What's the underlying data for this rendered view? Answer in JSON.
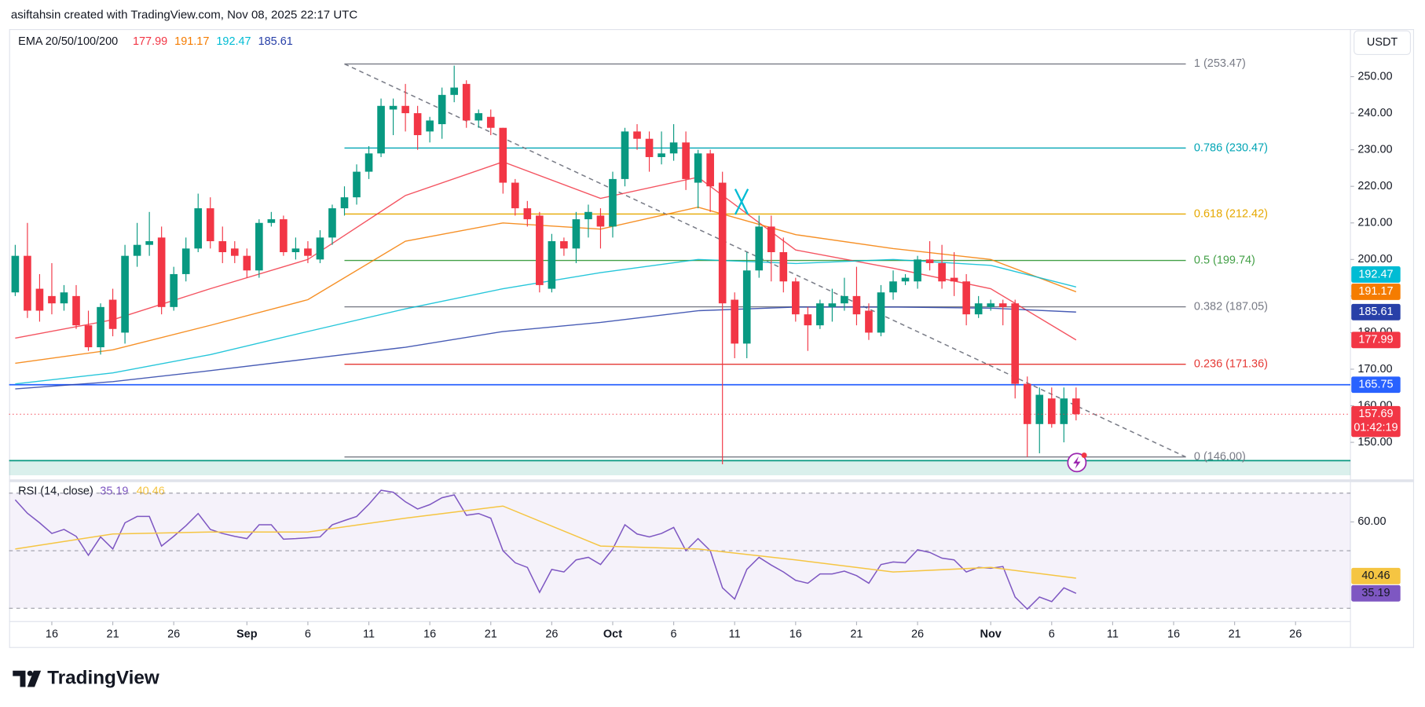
{
  "header": "asiftahsin created with TradingView.com, Nov 08, 2025 22:17 UTC",
  "brand": "TradingView",
  "chart_data": {
    "type": "candlestick",
    "currency": "USDT",
    "indicator_title": "EMA 20/50/100/200",
    "categories": [
      "Aug 13",
      "Aug 14",
      "Aug 15",
      "Aug 16",
      "Aug 17",
      "Aug 18",
      "Aug 19",
      "Aug 20",
      "Aug 21",
      "Aug 22",
      "Aug 23",
      "Aug 24",
      "Aug 25",
      "Aug 26",
      "Aug 27",
      "Aug 28",
      "Aug 29",
      "Aug 30",
      "Aug 31",
      "Sep 1",
      "Sep 2",
      "Sep 3",
      "Sep 4",
      "Sep 5",
      "Sep 6",
      "Sep 7",
      "Sep 8",
      "Sep 9",
      "Sep 10",
      "Sep 11",
      "Sep 12",
      "Sep 13",
      "Sep 14",
      "Sep 15",
      "Sep 16",
      "Sep 17",
      "Sep 18",
      "Sep 19",
      "Sep 20",
      "Sep 21",
      "Sep 22",
      "Sep 23",
      "Sep 24",
      "Sep 25",
      "Sep 26",
      "Sep 27",
      "Sep 28",
      "Sep 29",
      "Sep 30",
      "Oct 1",
      "Oct 2",
      "Oct 3",
      "Oct 4",
      "Oct 5",
      "Oct 6",
      "Oct 7",
      "Oct 8",
      "Oct 9",
      "Oct 10",
      "Oct 11",
      "Oct 12",
      "Oct 13",
      "Oct 14",
      "Oct 15",
      "Oct 16",
      "Oct 17",
      "Oct 18",
      "Oct 19",
      "Oct 20",
      "Oct 21",
      "Oct 22",
      "Oct 23",
      "Oct 24",
      "Oct 25",
      "Oct 26",
      "Oct 27",
      "Oct 28",
      "Oct 29",
      "Oct 30",
      "Oct 31",
      "Nov 1",
      "Nov 2",
      "Nov 3",
      "Nov 4",
      "Nov 5",
      "Nov 6",
      "Nov 7",
      "Nov 8",
      "Nov 9",
      "Nov 10",
      "Nov 11",
      "Nov 12",
      "Nov 13",
      "Nov 14",
      "Nov 15",
      "Nov 16",
      "Nov 17",
      "Nov 18",
      "Nov 19",
      "Nov 20",
      "Nov 21",
      "Nov 22",
      "Nov 23",
      "Nov 24",
      "Nov 25",
      "Nov 26",
      "Nov 27",
      "Nov 28",
      "Nov 29",
      "Nov 30"
    ],
    "open": [
      191,
      201,
      192,
      190,
      188,
      190,
      182,
      176,
      189,
      180,
      201,
      204,
      206,
      187,
      196,
      203,
      214,
      205,
      203,
      201,
      197,
      210,
      211,
      202,
      203,
      200,
      206,
      214,
      217,
      224,
      229,
      241,
      242,
      240,
      235,
      237,
      245,
      248,
      238,
      239,
      236,
      221,
      214,
      212,
      192,
      205,
      203,
      211,
      212,
      209,
      222,
      235,
      233,
      228,
      229,
      232,
      221,
      229,
      221,
      189,
      177,
      197,
      209,
      202,
      194,
      185,
      182,
      187,
      188,
      190,
      186,
      180,
      191,
      194,
      194,
      200,
      199,
      195,
      194,
      185,
      187,
      188,
      188,
      166,
      155,
      162,
      155,
      162,
      null,
      null,
      null,
      null,
      null,
      null,
      null,
      null,
      null,
      null,
      null,
      null,
      null,
      null,
      null,
      null,
      null,
      null,
      null,
      null,
      null,
      null
    ],
    "high": [
      204,
      210,
      196,
      199,
      193,
      193,
      186,
      188,
      192,
      204,
      210,
      213,
      209,
      198,
      206,
      218,
      217,
      209,
      205,
      203,
      211,
      213,
      212,
      206,
      205,
      208,
      215,
      220,
      226,
      231,
      244,
      244,
      248,
      242,
      239,
      247,
      253,
      249,
      241,
      241,
      236,
      222,
      216,
      213,
      207,
      206,
      213,
      215,
      214,
      224,
      236,
      237,
      235,
      235,
      237,
      235,
      230,
      230,
      224,
      191,
      202,
      212,
      212,
      206,
      195,
      187,
      189,
      192,
      195,
      198,
      188,
      193,
      197,
      196,
      201,
      205,
      204,
      202,
      196,
      190,
      189,
      189,
      189,
      168,
      165,
      165,
      165,
      165,
      null,
      null,
      null,
      null,
      null,
      null,
      null,
      null,
      null,
      null,
      null,
      null,
      null,
      null,
      null,
      null,
      null,
      null,
      null,
      null,
      null,
      null
    ],
    "low": [
      190,
      184,
      183,
      185,
      186,
      181,
      175,
      174,
      179,
      177,
      198,
      201,
      185,
      186,
      194,
      202,
      203,
      199,
      199,
      195,
      195,
      209,
      201,
      200,
      199,
      199,
      204,
      212,
      215,
      222,
      228,
      234,
      235,
      230,
      232,
      233,
      243,
      236,
      236,
      234,
      218,
      212,
      209,
      191,
      191,
      201,
      199,
      206,
      203,
      206,
      220,
      230,
      224,
      226,
      227,
      219,
      214,
      213,
      144,
      173,
      173,
      195,
      194,
      191,
      183,
      175,
      181,
      183,
      186,
      182,
      178,
      179,
      189,
      193,
      192,
      197,
      192,
      190,
      182,
      184,
      186,
      182,
      162,
      146,
      147,
      154,
      150,
      156,
      null,
      null,
      null,
      null,
      null,
      null,
      null,
      null,
      null,
      null,
      null,
      null,
      null,
      null,
      null,
      null,
      null,
      null,
      null,
      null,
      null,
      null
    ],
    "close": [
      201,
      186,
      186,
      188,
      191,
      182,
      176,
      187,
      181,
      201,
      204,
      205,
      187,
      196,
      203,
      214,
      205,
      202,
      201,
      197,
      210,
      211,
      202,
      203,
      201,
      206,
      214,
      217,
      224,
      229,
      242,
      242,
      240,
      234,
      238,
      245,
      247,
      238,
      240,
      236,
      221,
      214,
      211,
      193,
      205,
      203,
      211,
      213,
      209,
      222,
      235,
      233,
      228,
      229,
      232,
      222,
      229,
      220,
      188,
      177,
      197,
      209,
      202,
      194,
      185,
      182,
      188,
      188,
      190,
      185,
      180,
      191,
      194,
      195,
      200,
      199,
      194,
      194,
      185,
      188,
      188,
      187,
      166,
      155,
      163,
      155,
      162,
      157.69,
      null,
      null,
      null,
      null,
      null,
      null,
      null,
      null,
      null,
      null,
      null,
      null,
      null,
      null,
      null,
      null,
      null,
      null,
      null,
      null,
      null,
      null
    ],
    "up_color": "#089981",
    "down_color": "#f23645",
    "countdown": "01:42:19",
    "ylim": [
      140,
      263
    ],
    "yticks": [
      {
        "value": 150,
        "label": "150.00"
      },
      {
        "value": 160,
        "label": "160.00"
      },
      {
        "value": 170,
        "label": "170.00"
      },
      {
        "value": 180,
        "label": "180.00"
      },
      {
        "value": 190,
        "label": "190.00"
      },
      {
        "value": 200,
        "label": "200.00"
      },
      {
        "value": 210,
        "label": "210.00"
      },
      {
        "value": 220,
        "label": "220.00"
      },
      {
        "value": 230,
        "label": "230.00"
      },
      {
        "value": 240,
        "label": "240.00"
      },
      {
        "value": 250,
        "label": "250.00"
      }
    ],
    "xticks": [
      {
        "value": "Aug 16",
        "label": "16"
      },
      {
        "value": "Aug 21",
        "label": "21"
      },
      {
        "value": "Aug 26",
        "label": "26"
      },
      {
        "value": "Sep 1",
        "label": "Sep"
      },
      {
        "value": "Sep 6",
        "label": "6"
      },
      {
        "value": "Sep 11",
        "label": "11"
      },
      {
        "value": "Sep 16",
        "label": "16"
      },
      {
        "value": "Sep 21",
        "label": "21"
      },
      {
        "value": "Sep 26",
        "label": "26"
      },
      {
        "value": "Oct 1",
        "label": "Oct"
      },
      {
        "value": "Oct 6",
        "label": "6"
      },
      {
        "value": "Oct 11",
        "label": "11"
      },
      {
        "value": "Oct 16",
        "label": "16"
      },
      {
        "value": "Oct 21",
        "label": "21"
      },
      {
        "value": "Oct 26",
        "label": "26"
      },
      {
        "value": "Nov 1",
        "label": "Nov"
      },
      {
        "value": "Nov 6",
        "label": "6"
      },
      {
        "value": "Nov 11",
        "label": "11"
      },
      {
        "value": "Nov 16",
        "label": "16"
      },
      {
        "value": "Nov 21",
        "label": "21"
      },
      {
        "value": "Nov 26",
        "label": "26"
      }
    ],
    "series": [
      {
        "color": "#f23645",
        "x": [
          "Aug 13",
          "Aug 21",
          "Aug 29",
          "Sep 6",
          "Sep 14",
          "Sep 22",
          "Sep 30",
          "Oct 8",
          "Oct 16",
          "Oct 24",
          "Nov 1",
          "Nov 8"
        ],
        "values": [
          178.5,
          183.5,
          192,
          200,
          217.5,
          226.7,
          216.7,
          222.5,
          202.6,
          197.6,
          192,
          177.99
        ]
      },
      {
        "color": "#f57c00",
        "x": [
          "Aug 13",
          "Aug 21",
          "Aug 29",
          "Sep 6",
          "Sep 14",
          "Sep 22",
          "Sep 30",
          "Oct 8",
          "Oct 16",
          "Oct 24",
          "Nov 1",
          "Nov 8"
        ],
        "values": [
          171.6,
          175.3,
          182,
          189,
          205,
          210,
          208.3,
          214.3,
          206.8,
          203,
          200,
          191.17
        ]
      },
      {
        "color": "#00bcd4",
        "x": [
          "Aug 13",
          "Aug 21",
          "Aug 29",
          "Sep 6",
          "Sep 14",
          "Sep 22",
          "Sep 30",
          "Oct 8",
          "Oct 16",
          "Oct 24",
          "Nov 1",
          "Nov 8"
        ],
        "values": [
          166,
          169,
          174,
          180.3,
          186.5,
          192,
          196.4,
          200,
          198.9,
          200,
          198.4,
          192.47
        ]
      },
      {
        "color": "#2840a8",
        "x": [
          "Aug 13",
          "Aug 21",
          "Aug 29",
          "Sep 6",
          "Sep 14",
          "Sep 22",
          "Sep 30",
          "Oct 8",
          "Oct 16",
          "Oct 24",
          "Nov 1",
          "Nov 8"
        ],
        "values": [
          164.6,
          166.6,
          169.6,
          172.8,
          176,
          180.3,
          182.8,
          186,
          187,
          187,
          186.7,
          185.61
        ]
      }
    ],
    "trendline": {
      "x": [
        "Sep 9",
        "Nov 17"
      ],
      "values": [
        253.47,
        146
      ],
      "color": "#787b86"
    },
    "fib_levels": [
      {
        "label": "1 (253.47)",
        "value": 253.47,
        "color": "#787b86"
      },
      {
        "label": "0.786 (230.47)",
        "value": 230.47,
        "color": "#00a5b5"
      },
      {
        "label": "0.618 (212.42)",
        "value": 212.42,
        "color": "#e6a800"
      },
      {
        "label": "0.5 (199.74)",
        "value": 199.74,
        "color": "#43a047"
      },
      {
        "label": "0.382 (187.05)",
        "value": 187.05,
        "color": "#787b86"
      },
      {
        "label": "0.236 (171.36)",
        "value": 171.36,
        "color": "#e53935"
      },
      {
        "label": "0 (146.00)",
        "value": 146,
        "color": "#787b86"
      }
    ],
    "hline": {
      "value": 165.75,
      "color": "#2962ff"
    },
    "zone": {
      "from": 141,
      "to": 145,
      "color": "#089981"
    },
    "rsi": {
      "title": "RSI (14, close)",
      "ylim": [
        26,
        74
      ],
      "yticks": [
        {
          "value": 60,
          "label": "60.00"
        }
      ],
      "levels": [
        70,
        50,
        30
      ],
      "series": [
        {
          "color": "#7e57c2",
          "values": [
            67.7,
            63,
            59.7,
            56,
            57.4,
            55,
            48.4,
            54.8,
            50.6,
            59.7,
            61.9,
            61.9,
            51.6,
            55,
            58.7,
            62.9,
            57.4,
            56,
            55,
            54.2,
            59,
            59,
            54,
            54.2,
            54.5,
            54.8,
            59,
            60.5,
            61.9,
            66.1,
            71,
            70.3,
            67,
            64.5,
            66,
            68.4,
            69.4,
            62.3,
            62.9,
            61.3,
            50,
            45.8,
            44.2,
            35.5,
            43.5,
            42.6,
            46.8,
            47.7,
            45.2,
            50.6,
            59,
            55.8,
            54.8,
            56,
            58.1,
            50,
            54.2,
            50,
            37.1,
            33.2,
            43.5,
            47.7,
            45,
            42.6,
            39.7,
            38.7,
            41.9,
            41.9,
            42.9,
            41.3,
            38.7,
            45.2,
            46.1,
            45.8,
            50.3,
            49.4,
            47.4,
            46.8,
            42.6,
            44.2,
            43.9,
            44.5,
            33.9,
            29.7,
            33.9,
            32.3,
            37.1,
            35.19,
            null,
            null,
            null,
            null,
            null,
            null,
            null,
            null,
            null,
            null,
            null,
            null,
            null,
            null,
            null,
            null,
            null,
            null,
            null,
            null,
            null,
            null
          ]
        },
        {
          "color": "#f5c542",
          "x": [
            "Aug 13",
            "Aug 21",
            "Aug 29",
            "Sep 6",
            "Sep 14",
            "Sep 22",
            "Sep 30",
            "Oct 8",
            "Oct 16",
            "Oct 24",
            "Nov 1",
            "Nov 8"
          ],
          "values": [
            50.6,
            55.8,
            56.5,
            56.5,
            61.3,
            65.5,
            51.6,
            50.6,
            46.8,
            42.6,
            44.2,
            40.46
          ]
        }
      ]
    }
  }
}
